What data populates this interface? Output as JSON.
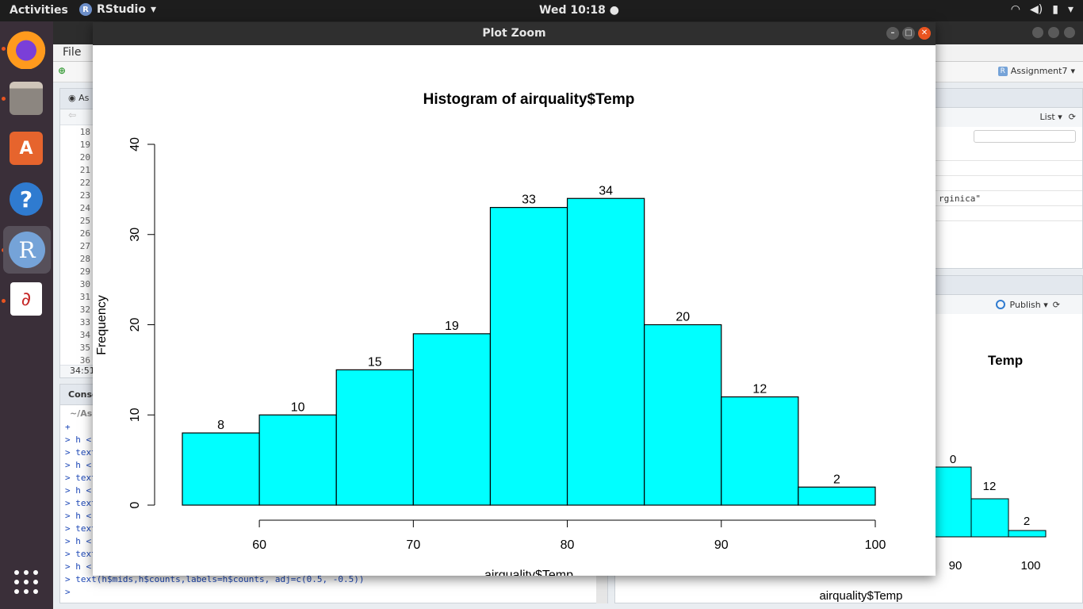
{
  "topbar": {
    "activities": "Activities",
    "app": "RStudio",
    "clock": "Wed 10:18"
  },
  "dock": [
    "Firefox",
    "Files",
    "Ubuntu Software",
    "Help",
    "RStudio",
    "Document Viewer",
    "Show Applications"
  ],
  "rstudio": {
    "menu_file": "File",
    "project": "Assignment7",
    "editor_tab": "As",
    "line_numbers": [
      "18",
      "19",
      "20",
      "21",
      "22",
      "23",
      "24",
      "25",
      "26",
      "27",
      "28",
      "29",
      "30",
      "31",
      "32",
      "33",
      "34",
      "35",
      "36"
    ],
    "cursor_pos": "34:51",
    "console_tab": "Conso",
    "console_path": "~/As",
    "console_lines": [
      "+",
      "> h <",
      "> text",
      "> h <",
      "> text",
      "> h <",
      "> text",
      "> h <",
      "> text",
      "> h <",
      "> text",
      "> h <",
      "> text(h$mids,h$counts,labels=h$counts, adj=c(0.5, -0.5))",
      "> "
    ],
    "env_view": "List",
    "env_row": "rginica\"",
    "publish": "Publish",
    "mini_title": "Temp",
    "mini_labels": [
      "0",
      "12",
      "2"
    ],
    "mini_ticks": [
      "90",
      "100"
    ],
    "mini_xlabel": "airquality$Temp"
  },
  "zoom_window": {
    "title": "Plot Zoom"
  },
  "chart_data": {
    "type": "bar",
    "title": "Histogram of airquality$Temp",
    "xlabel": "airquality$Temp",
    "ylabel": "Frequency",
    "bin_edges": [
      55,
      60,
      65,
      70,
      75,
      80,
      85,
      90,
      95,
      100
    ],
    "values": [
      8,
      10,
      15,
      19,
      33,
      34,
      20,
      12,
      2
    ],
    "x_ticks": [
      60,
      70,
      80,
      90,
      100
    ],
    "y_ticks": [
      0,
      10,
      20,
      30,
      40
    ],
    "xlim": [
      55,
      100
    ],
    "ylim": [
      0,
      40
    ],
    "bar_color": "#00ffff",
    "grid": false
  }
}
